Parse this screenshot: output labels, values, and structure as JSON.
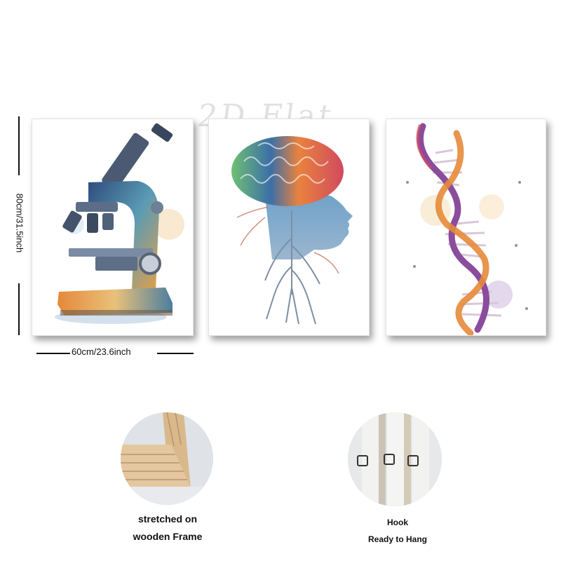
{
  "watermark": "2D Flat",
  "dimensions": {
    "height_label": "80cm/31.5inch",
    "width_label": "60cm/23.6inch"
  },
  "panels": [
    {
      "name": "microscope-painting",
      "subject": "microscope"
    },
    {
      "name": "brain-head-painting",
      "subject": "brain and head"
    },
    {
      "name": "dna-helix-painting",
      "subject": "dna helix"
    }
  ],
  "features": [
    {
      "icon": "wooden-frame-icon",
      "caption_line1": "stretched on",
      "caption_line2": "wooden Frame"
    },
    {
      "icon": "hook-icon",
      "caption_line1": "Hook",
      "caption_line2": "Ready to Hang"
    }
  ],
  "colors": {
    "shadow": "#5a5a5a",
    "wood": "#d9b98c",
    "dna_purple": "#8a4c9c",
    "dna_orange": "#e58a3a",
    "brain_blue": "#3b6fa8"
  }
}
